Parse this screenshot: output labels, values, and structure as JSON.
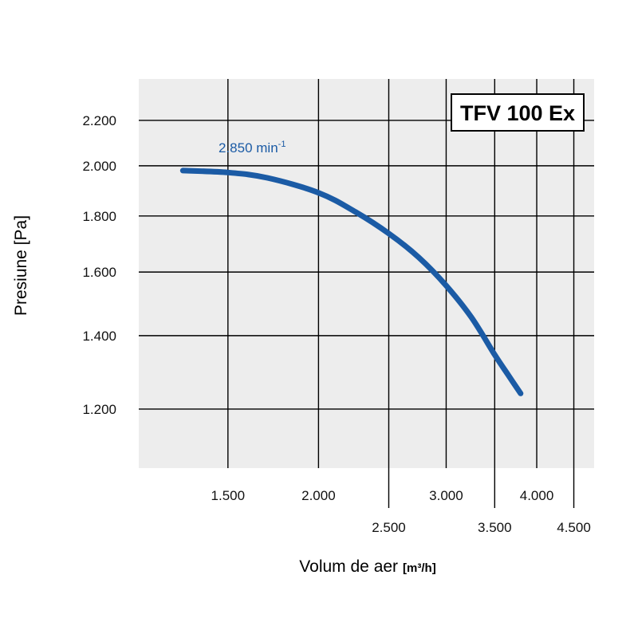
{
  "chart_data": {
    "type": "line",
    "title": "",
    "model_label": "TFV 100 Ex",
    "xlabel": "Volum de aer",
    "xunit": "[m³/h]",
    "ylabel": "Presiune [Pa]",
    "x_scale": "log",
    "y_scale": "log",
    "xlim": [
      1130,
      4800
    ],
    "ylim": [
      1060,
      2400
    ],
    "x_ticks": [
      {
        "value": 1500,
        "label": "1.500",
        "row": 1
      },
      {
        "value": 2000,
        "label": "2.000",
        "row": 1
      },
      {
        "value": 2500,
        "label": "2.500",
        "row": 2
      },
      {
        "value": 3000,
        "label": "3.000",
        "row": 1
      },
      {
        "value": 3500,
        "label": "3.500",
        "row": 2
      },
      {
        "value": 4000,
        "label": "4.000",
        "row": 1
      },
      {
        "value": 4500,
        "label": "4.500",
        "row": 2
      }
    ],
    "y_ticks": [
      {
        "value": 1200,
        "label": "1.200"
      },
      {
        "value": 1400,
        "label": "1.400"
      },
      {
        "value": 1600,
        "label": "1.600"
      },
      {
        "value": 1800,
        "label": "1.800"
      },
      {
        "value": 2000,
        "label": "2.000"
      },
      {
        "value": 2200,
        "label": "2.200"
      }
    ],
    "grid": true,
    "series": [
      {
        "name": "2.850 min",
        "name_superscript": "-1",
        "color": "#1b5ba5",
        "x": [
          1300,
          1500,
          1700,
          2000,
          2250,
          2500,
          2750,
          3000,
          3250,
          3500,
          3650,
          3800
        ],
        "y": [
          1980,
          1972,
          1950,
          1890,
          1815,
          1735,
          1650,
          1555,
          1455,
          1345,
          1290,
          1240
        ]
      }
    ],
    "colors": {
      "plot_background": "#ededed",
      "gridline": "#000000",
      "curve": "#1b5ba5"
    }
  }
}
